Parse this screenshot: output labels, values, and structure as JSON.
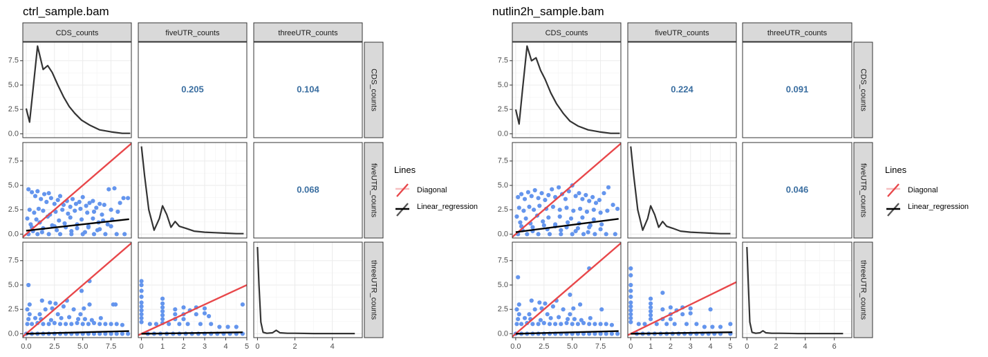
{
  "colors": {
    "point": "#6495ED",
    "diagonal": "#E8474A",
    "regression": "#000000",
    "density": "#333333",
    "corr_text": "#3A6EA0",
    "strip_fill": "#D9D9D9",
    "grid": "#EBEBEB"
  },
  "legend": {
    "title": "Lines",
    "items": [
      "Diagonal",
      "Linear_regression"
    ],
    "placement": "right"
  },
  "chart_data": [
    {
      "type": "scatter",
      "title": "ctrl_sample.bam",
      "variables": [
        "CDS_counts",
        "fiveUTR_counts",
        "threeUTR_counts"
      ],
      "x_ticks": [
        [
          "0.0",
          "2.5",
          "5.0",
          "7.5"
        ],
        [
          "0",
          "1",
          "2",
          "3",
          "4",
          "5"
        ],
        [
          "0",
          "2",
          "4"
        ]
      ],
      "y_ticks": [
        "0.0",
        "2.5",
        "5.0",
        "7.5"
      ],
      "x_ranges": [
        [
          -0.3,
          9.3
        ],
        [
          -0.15,
          5.0
        ],
        [
          -0.2,
          5.6
        ]
      ],
      "y_range": [
        -0.4,
        9.4
      ],
      "correlations": {
        "fiveUTR_vs_CDS": "0.205",
        "threeUTR_vs_CDS": "0.104",
        "threeUTR_vs_fiveUTR": "0.068"
      },
      "densities": [
        {
          "x": [
            0,
            0.3,
            0.6,
            1.0,
            1.5,
            1.9,
            2.3,
            2.8,
            3.3,
            3.8,
            4.3,
            4.9,
            5.6,
            6.5,
            7.5,
            8.5,
            9.2
          ],
          "y": [
            2.6,
            1.2,
            4.5,
            9.0,
            6.6,
            7.0,
            6.3,
            5.0,
            3.8,
            2.8,
            2.1,
            1.4,
            0.9,
            0.4,
            0.2,
            0.05,
            0.05
          ]
        },
        {
          "x": [
            0,
            0.15,
            0.35,
            0.6,
            0.85,
            1.0,
            1.2,
            1.4,
            1.6,
            1.8,
            2.1,
            2.5,
            3,
            3.5,
            4,
            4.5,
            4.85
          ],
          "y": [
            9.0,
            6.0,
            2.5,
            0.4,
            1.6,
            2.9,
            2.0,
            0.7,
            1.3,
            0.8,
            0.6,
            0.3,
            0.2,
            0.15,
            0.1,
            0.05,
            0.05
          ]
        },
        {
          "x": [
            0,
            0.08,
            0.18,
            0.3,
            0.5,
            0.8,
            1.0,
            1.2,
            1.6,
            2,
            3,
            4,
            5.2
          ],
          "y": [
            8.9,
            5.0,
            1.2,
            0.15,
            0.05,
            0.1,
            0.35,
            0.1,
            0.05,
            0.05,
            0.02,
            0.02,
            0.02
          ]
        }
      ],
      "regressions": {
        "fiveUTR_vs_CDS": [
          0.35,
          0.13
        ],
        "threeUTR_vs_CDS": [
          0.0,
          0.03
        ],
        "threeUTR_vs_fiveUTR": [
          0.0,
          0.03
        ]
      },
      "scatter_fiveUTR_vs_CDS": {
        "x": [
          0.2,
          0.5,
          0.8,
          1.0,
          1.3,
          1.6,
          1.8,
          2.0,
          2.2,
          2.5,
          2.8,
          3.0,
          3.3,
          3.6,
          3.9,
          4.1,
          4.4,
          4.7,
          5.0,
          5.3,
          5.6,
          5.9,
          6.2,
          6.5,
          6.9,
          7.3,
          7.8,
          8.3,
          8.6,
          0.3,
          0.7,
          1.1,
          1.5,
          2.1,
          2.6,
          3.2,
          3.7,
          4.3,
          4.8,
          5.4,
          6.0,
          6.7,
          7.5,
          8.1,
          0.1,
          0.9,
          1.9,
          2.9,
          3.9,
          4.9,
          5.9,
          6.8,
          7.6,
          0.4,
          1.2,
          2.3,
          3.4,
          4.5,
          5.5,
          6.4,
          7.2,
          0.6,
          1.4,
          2.7,
          4.0,
          5.2,
          6.3,
          0.2,
          1.0,
          2.0,
          3.0,
          4.0,
          5.0,
          6.0,
          7.0,
          8.0,
          8.7,
          9.0,
          0.5,
          1.5,
          2.5,
          3.5,
          4.5,
          5.5,
          6.5,
          7.5
        ],
        "y": [
          4.6,
          4.3,
          3.9,
          4.4,
          3.6,
          4.1,
          3.3,
          4.2,
          3.7,
          3.1,
          3.5,
          3.9,
          3.0,
          3.4,
          2.8,
          3.6,
          3.1,
          3.3,
          3.8,
          2.9,
          3.2,
          3.4,
          2.7,
          3.1,
          3.0,
          4.6,
          4.7,
          3.2,
          3.7,
          2.5,
          2.2,
          2.6,
          2.4,
          2.0,
          2.3,
          2.5,
          2.1,
          2.4,
          2.6,
          2.2,
          2.3,
          2.0,
          2.5,
          2.3,
          1.6,
          1.5,
          1.8,
          1.4,
          1.7,
          1.5,
          1.6,
          1.4,
          1.5,
          1.0,
          1.2,
          0.9,
          1.1,
          1.0,
          0.8,
          1.2,
          1.0,
          0.3,
          0.2,
          0.4,
          0.3,
          0.2,
          0.4,
          0,
          0,
          0,
          0,
          0,
          0,
          0,
          0,
          0,
          0,
          3.7,
          0.7,
          0.6,
          0.8,
          0.7,
          0.6,
          0.7,
          0.5,
          0.8
        ]
      },
      "scatter_threeUTR_vs_CDS": {
        "x": [
          0.1,
          0.5,
          1.0,
          1.5,
          2.0,
          2.5,
          3.0,
          3.5,
          4.0,
          4.5,
          5.0,
          5.5,
          6.0,
          6.5,
          7.0,
          7.5,
          8.0,
          8.5,
          0.2,
          0.8,
          1.3,
          2.2,
          3.1,
          3.8,
          4.6,
          5.2,
          5.8,
          6.6,
          7.7,
          0.1,
          0.3,
          1.2,
          1.7,
          2.3,
          2.8,
          3.3,
          4.8,
          5.1,
          5.6,
          7.9,
          0.2,
          1.4,
          2.6,
          3.6,
          4.9,
          0.3,
          2.1,
          4.2,
          5.6,
          0.0,
          0.5,
          1.0,
          1.5,
          2.0,
          2.5,
          3.0,
          3.5,
          4.0,
          4.5,
          5.0,
          5.5,
          6.0,
          6.5,
          7.0,
          7.5,
          8.0,
          8.5,
          9.0
        ],
        "y": [
          1.0,
          1.0,
          1.1,
          1.0,
          1.0,
          1.1,
          1.0,
          1.0,
          1.0,
          1.1,
          1.0,
          1.0,
          1.1,
          1.0,
          1.0,
          1.0,
          1.0,
          0.9,
          1.5,
          1.6,
          1.5,
          1.4,
          1.6,
          1.7,
          1.5,
          1.5,
          1.4,
          1.6,
          3.0,
          2.5,
          2.0,
          2.0,
          2.5,
          2.6,
          2.0,
          2.8,
          2.0,
          2.6,
          3.0,
          3.0,
          5.0,
          3.4,
          3.1,
          3.4,
          4.4,
          3.0,
          3.2,
          2.5,
          5.4,
          0,
          0,
          0,
          0,
          0,
          0,
          0,
          0,
          0,
          0,
          0,
          0,
          0,
          0,
          0,
          0,
          0,
          0,
          0
        ]
      },
      "scatter_threeUTR_vs_fiveUTR": {
        "x": [
          0,
          0,
          0,
          0,
          0,
          0,
          0,
          0,
          0,
          0,
          1,
          1,
          1,
          1,
          1,
          1,
          1,
          1.6,
          1.6,
          1.6,
          2.0,
          2.0,
          2.0,
          2.3,
          2.6,
          2.6,
          3.0,
          3.0,
          3.2,
          4.8,
          0.4,
          0.7,
          1.3,
          1.8,
          2.2,
          2.8,
          3.3,
          3.7,
          4.1,
          4.5,
          0.3,
          0.6,
          0.9,
          1.2,
          1.5,
          1.8,
          2.1,
          2.4,
          2.7,
          3.0,
          3.3,
          3.6,
          3.9,
          4.2,
          4.5,
          4.8
        ],
        "y": [
          5.4,
          5.0,
          4.4,
          3.8,
          3.2,
          2.8,
          2.4,
          2.0,
          1.6,
          1.2,
          3.6,
          3.1,
          2.7,
          2.3,
          1.9,
          1.5,
          1.1,
          2.5,
          2.0,
          1.5,
          2.7,
          2.0,
          1.5,
          2.4,
          2.7,
          2.0,
          2.6,
          2.1,
          1.8,
          3.0,
          1.0,
          1.0,
          1.0,
          1.0,
          1.0,
          1.0,
          1.0,
          0.7,
          0.7,
          0.7,
          0,
          0,
          0,
          0,
          0,
          0,
          0,
          0,
          0,
          0,
          0,
          0,
          0,
          0,
          0,
          0
        ]
      }
    },
    {
      "type": "scatter",
      "title": "nutlin2h_sample.bam",
      "variables": [
        "CDS_counts",
        "fiveUTR_counts",
        "threeUTR_counts"
      ],
      "x_ticks": [
        [
          "0.0",
          "2.5",
          "5.0",
          "7.5"
        ],
        [
          "0",
          "1",
          "2",
          "3",
          "4",
          "5"
        ],
        [
          "0",
          "2",
          "4",
          "6"
        ]
      ],
      "y_ticks": [
        "0.0",
        "2.5",
        "5.0",
        "7.5"
      ],
      "x_ranges": [
        [
          -0.3,
          9.3
        ],
        [
          -0.15,
          5.3
        ],
        [
          -0.3,
          7.2
        ]
      ],
      "y_range": [
        -0.4,
        9.4
      ],
      "correlations": {
        "fiveUTR_vs_CDS": "0.224",
        "threeUTR_vs_CDS": "0.091",
        "threeUTR_vs_fiveUTR": "0.046"
      },
      "densities": [
        {
          "x": [
            0,
            0.3,
            0.6,
            1.0,
            1.4,
            1.8,
            2.2,
            2.6,
            3.1,
            3.6,
            4.2,
            4.8,
            5.5,
            6.4,
            7.4,
            8.4,
            9.2
          ],
          "y": [
            2.5,
            1.0,
            4.5,
            9.0,
            7.5,
            7.8,
            6.5,
            5.6,
            4.2,
            3.1,
            2.1,
            1.3,
            0.8,
            0.4,
            0.2,
            0.05,
            0.05
          ]
        },
        {
          "x": [
            0,
            0.15,
            0.35,
            0.6,
            0.85,
            1.0,
            1.2,
            1.4,
            1.6,
            1.8,
            2.1,
            2.5,
            3,
            3.5,
            4,
            4.5,
            5.0
          ],
          "y": [
            9.0,
            6.0,
            2.5,
            0.4,
            1.6,
            2.9,
            2.0,
            0.7,
            1.3,
            0.8,
            0.6,
            0.3,
            0.2,
            0.15,
            0.1,
            0.05,
            0.05
          ]
        },
        {
          "x": [
            0,
            0.1,
            0.2,
            0.35,
            0.6,
            0.9,
            1.1,
            1.3,
            1.7,
            2.2,
            3.5,
            5,
            6.6
          ],
          "y": [
            8.9,
            5.0,
            1.2,
            0.15,
            0.05,
            0.1,
            0.3,
            0.1,
            0.05,
            0.05,
            0.02,
            0.02,
            0.02
          ]
        }
      ],
      "regressions": {
        "fiveUTR_vs_CDS": [
          0.2,
          0.15
        ],
        "threeUTR_vs_CDS": [
          0.0,
          0.03
        ],
        "threeUTR_vs_fiveUTR": [
          0.0,
          0.03
        ]
      },
      "scatter_fiveUTR_vs_CDS": {
        "x": [
          0.2,
          0.5,
          0.8,
          1.1,
          1.4,
          1.7,
          2.0,
          2.3,
          2.6,
          2.9,
          3.2,
          3.5,
          3.8,
          4.1,
          4.4,
          4.7,
          5.0,
          5.3,
          5.6,
          5.9,
          6.2,
          6.5,
          6.8,
          7.1,
          7.4,
          7.8,
          8.2,
          8.6,
          9.0,
          0.3,
          0.7,
          1.2,
          1.6,
          2.1,
          2.7,
          3.3,
          3.9,
          4.5,
          5.1,
          5.7,
          6.3,
          6.9,
          7.5,
          8.1,
          0.1,
          0.9,
          1.9,
          2.9,
          3.9,
          4.9,
          5.9,
          6.9,
          0.4,
          1.3,
          2.4,
          3.5,
          4.6,
          5.6,
          6.6,
          7.6,
          0.6,
          1.5,
          2.8,
          4.0,
          5.3,
          6.4,
          0.2,
          1.0,
          2.0,
          3.0,
          4.0,
          5.0,
          6.0,
          7.0,
          8.0,
          8.8,
          0.5,
          1.5,
          2.5,
          3.5,
          4.5,
          5.5,
          6.5,
          7.5
        ],
        "y": [
          3.8,
          4.1,
          3.6,
          4.3,
          3.9,
          4.5,
          3.7,
          4.2,
          3.5,
          4.0,
          4.6,
          3.8,
          4.8,
          4.1,
          3.6,
          4.4,
          5.0,
          3.9,
          4.2,
          3.6,
          4.0,
          3.4,
          3.8,
          3.2,
          3.5,
          4.2,
          4.8,
          3.0,
          2.6,
          2.7,
          2.4,
          2.8,
          2.5,
          2.9,
          2.6,
          2.8,
          2.5,
          2.7,
          2.4,
          2.6,
          2.3,
          2.5,
          2.2,
          2.4,
          1.8,
          1.6,
          1.9,
          1.7,
          1.8,
          1.6,
          1.7,
          1.5,
          1.2,
          1.1,
          1.3,
          1.0,
          1.2,
          1.1,
          0.9,
          1.0,
          0.4,
          0.3,
          0.5,
          0.4,
          0.3,
          0.2,
          0,
          0,
          0,
          0,
          0,
          0,
          0,
          0,
          0,
          0,
          0.8,
          0.7,
          0.9,
          0.8,
          0.7,
          0.6,
          0.7,
          0.5
        ]
      },
      "scatter_threeUTR_vs_CDS": {
        "x": [
          0.1,
          0.5,
          1.0,
          1.5,
          2.0,
          2.5,
          3.0,
          3.5,
          4.0,
          4.5,
          5.0,
          5.5,
          6.0,
          6.5,
          7.0,
          7.5,
          8.0,
          8.5,
          0.2,
          0.8,
          1.3,
          2.2,
          3.1,
          3.8,
          4.6,
          5.2,
          5.8,
          6.6,
          0.1,
          0.3,
          1.2,
          1.7,
          2.3,
          2.8,
          3.3,
          4.8,
          5.1,
          5.7,
          7.6,
          0.2,
          1.4,
          2.6,
          3.6,
          4.8,
          0.3,
          2.1,
          4.2,
          6.5,
          0.0,
          0.5,
          1.0,
          1.5,
          2.0,
          2.5,
          3.0,
          3.5,
          4.0,
          4.5,
          5.0,
          5.5,
          6.0,
          6.5,
          7.0,
          7.5,
          8.0,
          8.5,
          9.0
        ],
        "y": [
          1.0,
          1.0,
          1.1,
          1.0,
          1.0,
          1.1,
          1.0,
          1.0,
          1.0,
          1.1,
          1.0,
          1.0,
          1.1,
          1.0,
          1.0,
          1.0,
          1.0,
          0.9,
          1.5,
          1.6,
          1.5,
          1.4,
          1.6,
          1.7,
          1.5,
          1.5,
          1.4,
          1.6,
          2.5,
          2.0,
          2.0,
          2.5,
          2.6,
          2.0,
          2.8,
          2.0,
          2.6,
          3.0,
          2.5,
          5.8,
          3.4,
          3.1,
          3.4,
          4.0,
          3.0,
          3.2,
          2.5,
          6.7,
          0,
          0,
          0,
          0,
          0,
          0,
          0,
          0,
          0,
          0,
          0,
          0,
          0,
          0,
          0,
          0,
          0,
          0,
          0
        ]
      },
      "scatter_threeUTR_vs_fiveUTR": {
        "x": [
          0,
          0,
          0,
          0,
          0,
          0,
          0,
          0,
          0,
          0,
          0,
          1,
          1,
          1,
          1,
          1,
          1,
          1.6,
          1.6,
          1.6,
          2.0,
          2.0,
          2.0,
          2.3,
          2.6,
          2.6,
          3.0,
          3.0,
          4.0,
          5.0,
          0.4,
          0.7,
          1.3,
          1.8,
          2.2,
          2.8,
          3.3,
          3.7,
          4.1,
          4.5,
          0.3,
          0.6,
          0.9,
          1.2,
          1.5,
          1.8,
          2.1,
          2.4,
          2.7,
          3.0,
          3.3,
          3.6,
          3.9,
          4.2,
          4.5,
          5.0
        ],
        "y": [
          6.7,
          6.0,
          5.0,
          4.4,
          3.8,
          3.2,
          2.8,
          2.4,
          2.0,
          1.6,
          1.2,
          3.6,
          3.1,
          2.7,
          2.3,
          1.9,
          1.5,
          4.2,
          2.5,
          1.5,
          2.7,
          2.0,
          1.5,
          2.4,
          2.7,
          2.0,
          2.6,
          2.1,
          2.5,
          1.0,
          1.0,
          1.0,
          1.0,
          1.0,
          1.0,
          1.0,
          1.0,
          0.7,
          0.7,
          0.7,
          0,
          0,
          0,
          0,
          0,
          0,
          0,
          0,
          0,
          0,
          0,
          0,
          0,
          0,
          0,
          0
        ]
      }
    }
  ]
}
